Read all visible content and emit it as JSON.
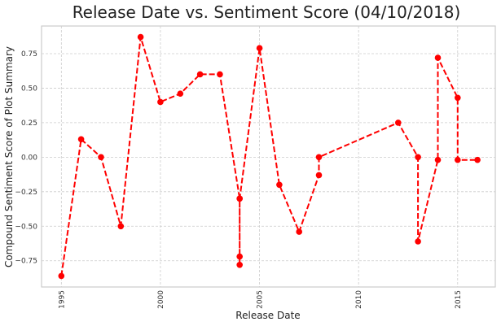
{
  "chart_data": {
    "type": "line",
    "title": "Release Date vs. Sentiment Score (04/10/2018)",
    "xlabel": "Release Date",
    "ylabel": "Compound Sentiment Score of Plot Summary",
    "xlim": [
      1994.0,
      2016.9
    ],
    "ylim": [
      -0.94,
      0.95
    ],
    "x_ticks": [
      1995,
      2000,
      2005,
      2010,
      2015
    ],
    "x_tick_labels": [
      "1995",
      "2000",
      "2005",
      "2010",
      "2015"
    ],
    "y_ticks": [
      -0.75,
      -0.5,
      -0.25,
      0.0,
      0.25,
      0.5,
      0.75
    ],
    "y_tick_labels": [
      "−0.75",
      "−0.50",
      "−0.25",
      "0.00",
      "0.25",
      "0.50",
      "0.75"
    ],
    "grid": true,
    "series": [
      {
        "color": "#ff0000",
        "line_style": "dashed",
        "marker": "circle",
        "x": [
          1995.0,
          1996.0,
          1997.0,
          1998.0,
          1999.0,
          2000.0,
          2001.0,
          2002.0,
          2003.0,
          2004.0,
          2004.0,
          2004.0,
          2004.0,
          2005.0,
          2006.0,
          2007.0,
          2008.0,
          2008.0,
          2012.0,
          2013.0,
          2013.0,
          2014.0,
          2014.0,
          2015.0,
          2015.0,
          2016.0
        ],
        "y": [
          -0.86,
          0.13,
          0.0,
          -0.5,
          0.87,
          0.4,
          0.46,
          0.6,
          0.6,
          -0.3,
          -0.72,
          -0.78,
          -0.3,
          0.79,
          -0.2,
          -0.54,
          -0.13,
          0.0,
          0.25,
          0.0,
          -0.61,
          -0.02,
          0.72,
          0.43,
          -0.02,
          -0.02
        ]
      }
    ]
  }
}
